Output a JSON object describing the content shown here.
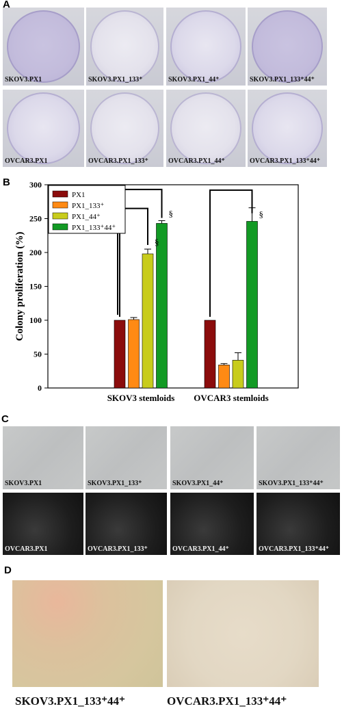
{
  "panels": {
    "a": "A",
    "b": "B",
    "c": "C",
    "d": "D"
  },
  "panel_a": {
    "row1": [
      "SKOV3.PX1",
      "SKOV3.PX1_133⁺",
      "SKOV3.PX1_44⁺",
      "SKOV3.PX1_133⁺44⁺"
    ],
    "row2": [
      "OVCAR3.PX1",
      "OVCAR3.PX1_133⁺",
      "OVCAR3.PX1_44⁺",
      "OVCAR3.PX1_133⁺44⁺"
    ]
  },
  "panel_c": {
    "row1": [
      "SKOV3.PX1",
      "SKOV3.PX1_133⁺",
      "SKOV3.PX1_44⁺",
      "SKOV3.PX1_133⁺44⁺"
    ],
    "row2": [
      "OVCAR3.PX1",
      "OVCAR3.PX1_133⁺",
      "OVCAR3.PX1_44⁺",
      "OVCAR3.PX1_133⁺44⁺"
    ]
  },
  "panel_d": {
    "left": "SKOV3.PX1_133⁺44⁺",
    "right": "OVCAR3.PX1_133⁺44⁺"
  },
  "chart_data": {
    "type": "bar",
    "ylabel": "Colony proliferation (%)",
    "xlabel": "",
    "ylim": [
      0,
      300
    ],
    "yticks": [
      "0",
      "50",
      "100",
      "150",
      "200",
      "250",
      "300"
    ],
    "categories": [
      "SKOV3 stemloids",
      "OVCAR3 stemloids"
    ],
    "series": [
      {
        "name": "PX1",
        "color": "#8b0c0c",
        "values": [
          100,
          100
        ],
        "errors": [
          0,
          0
        ]
      },
      {
        "name": "PX1_133⁺",
        "color": "#ff8a14",
        "values": [
          101,
          34
        ],
        "errors": [
          3,
          2
        ]
      },
      {
        "name": "PX1_44⁺",
        "color": "#c8cc1c",
        "values": [
          198,
          41
        ],
        "errors": [
          7,
          11
        ]
      },
      {
        "name": "PX1_133⁺44⁺",
        "color": "#129a24",
        "values": [
          243,
          246
        ],
        "errors": [
          4,
          20
        ]
      }
    ],
    "significance_marker": "§",
    "legend_position": "top-left"
  }
}
